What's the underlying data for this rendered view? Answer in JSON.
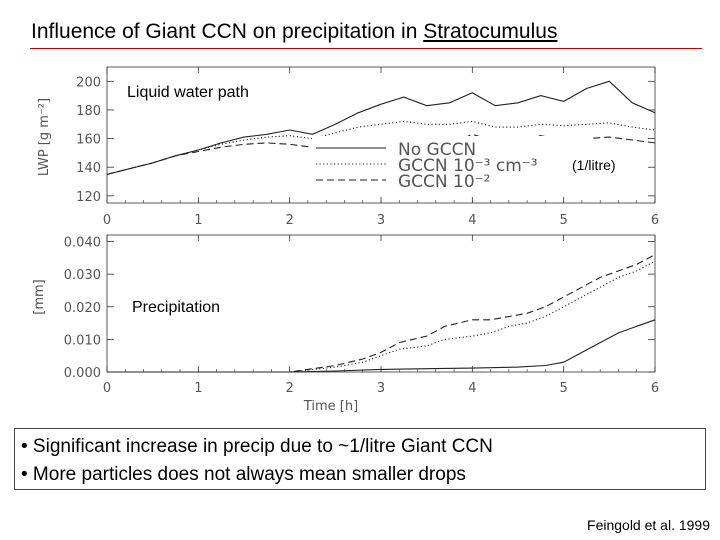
{
  "slide": {
    "title_part1": "Influence of Giant CCN on precipitation in ",
    "title_part2": "Stratocumulus",
    "bullets": [
      "• Significant increase in precip due to ~1/litre Giant CCN",
      "• More particles does not always mean smaller drops"
    ],
    "citation": "Feingold et al. 1999"
  },
  "chart_data": [
    {
      "type": "line",
      "panel_label": "Liquid water path",
      "ylabel": "LWP [g m⁻²]",
      "xlabel": "",
      "xlim": [
        0,
        6
      ],
      "ylim": [
        115,
        210
      ],
      "x_ticks": [
        "0",
        "1",
        "2",
        "3",
        "4",
        "5",
        "6"
      ],
      "y_ticks": [
        "120",
        "140",
        "160",
        "180",
        "200"
      ],
      "legend_placement": "right",
      "legend": [
        {
          "text": "No GCCN"
        },
        {
          "text": "GCCN 10⁻³ cm⁻³"
        },
        {
          "text": "GCCN 10⁻²"
        }
      ],
      "legend_note": "(1/litre)",
      "series": [
        {
          "name": "No GCCN",
          "style": "solid",
          "x": [
            0,
            0.25,
            0.5,
            0.75,
            1,
            1.25,
            1.5,
            1.75,
            2,
            2.25,
            2.5,
            2.75,
            3,
            3.25,
            3.5,
            3.75,
            4,
            4.25,
            4.5,
            4.75,
            5,
            5.25,
            5.5,
            5.75,
            6
          ],
          "y": [
            135,
            139,
            143,
            148,
            152,
            157,
            161,
            163,
            166,
            163,
            170,
            178,
            184,
            189,
            183,
            185,
            192,
            183,
            185,
            190,
            186,
            195,
            200,
            185,
            178
          ]
        },
        {
          "name": "GCCN 10⁻³ cm⁻³",
          "style": "dotted",
          "x": [
            0,
            0.25,
            0.5,
            0.75,
            1,
            1.25,
            1.5,
            1.75,
            2,
            2.25,
            2.5,
            2.75,
            3,
            3.25,
            3.5,
            3.75,
            4,
            4.25,
            4.5,
            4.75,
            5,
            5.25,
            5.5,
            5.75,
            6
          ],
          "y": [
            135,
            139,
            143,
            148,
            152,
            156,
            159,
            161,
            162,
            160,
            164,
            168,
            170,
            172,
            170,
            170,
            172,
            168,
            168,
            170,
            169,
            170,
            171,
            168,
            166
          ]
        },
        {
          "name": "GCCN 10⁻²",
          "style": "dashed",
          "x": [
            0,
            0.25,
            0.5,
            0.75,
            1,
            1.25,
            1.5,
            1.75,
            2,
            2.25,
            2.5,
            2.75,
            3,
            3.25,
            3.5,
            3.75,
            4,
            4.25,
            4.5,
            4.75,
            5,
            5.25,
            5.5,
            5.75,
            6
          ],
          "y": [
            135,
            139,
            143,
            148,
            151,
            154,
            156,
            157,
            156,
            154,
            157,
            159,
            160,
            158,
            158,
            156,
            163,
            158,
            160,
            162,
            159,
            160,
            161,
            159,
            157
          ]
        }
      ]
    },
    {
      "type": "line",
      "panel_label": "Precipitation",
      "ylabel": "[mm]",
      "xlabel": "Time [h]",
      "xlim": [
        0,
        6
      ],
      "ylim": [
        0,
        0.042
      ],
      "x_ticks": [
        "0",
        "1",
        "2",
        "3",
        "4",
        "5",
        "6"
      ],
      "y_ticks": [
        "0.000",
        "0.010",
        "0.020",
        "0.030",
        "0.040"
      ],
      "series": [
        {
          "name": "No GCCN",
          "style": "solid",
          "x": [
            0,
            2,
            2.5,
            3,
            3.5,
            4,
            4.5,
            4.8,
            5,
            5.2,
            5.4,
            5.6,
            5.8,
            6
          ],
          "y": [
            0,
            0,
            0.0003,
            0.0008,
            0.001,
            0.0012,
            0.0015,
            0.002,
            0.003,
            0.006,
            0.009,
            0.012,
            0.014,
            0.016
          ]
        },
        {
          "name": "GCCN 10⁻³ cm⁻³",
          "style": "dotted",
          "x": [
            0,
            2,
            2.5,
            2.8,
            3,
            3.2,
            3.5,
            3.7,
            4,
            4.2,
            4.4,
            4.6,
            4.8,
            5,
            5.2,
            5.4,
            5.6,
            5.8,
            6
          ],
          "y": [
            0,
            0,
            0.0015,
            0.003,
            0.005,
            0.007,
            0.008,
            0.01,
            0.011,
            0.012,
            0.014,
            0.015,
            0.017,
            0.02,
            0.023,
            0.026,
            0.029,
            0.031,
            0.034
          ]
        },
        {
          "name": "GCCN 10⁻²",
          "style": "dashed",
          "x": [
            0,
            2,
            2.5,
            2.8,
            3,
            3.2,
            3.5,
            3.7,
            4,
            4.2,
            4.4,
            4.6,
            4.8,
            5,
            5.2,
            5.4,
            5.6,
            5.8,
            6
          ],
          "y": [
            0,
            0,
            0.002,
            0.004,
            0.006,
            0.009,
            0.011,
            0.014,
            0.016,
            0.016,
            0.017,
            0.018,
            0.02,
            0.023,
            0.026,
            0.029,
            0.031,
            0.033,
            0.036
          ]
        }
      ]
    }
  ]
}
